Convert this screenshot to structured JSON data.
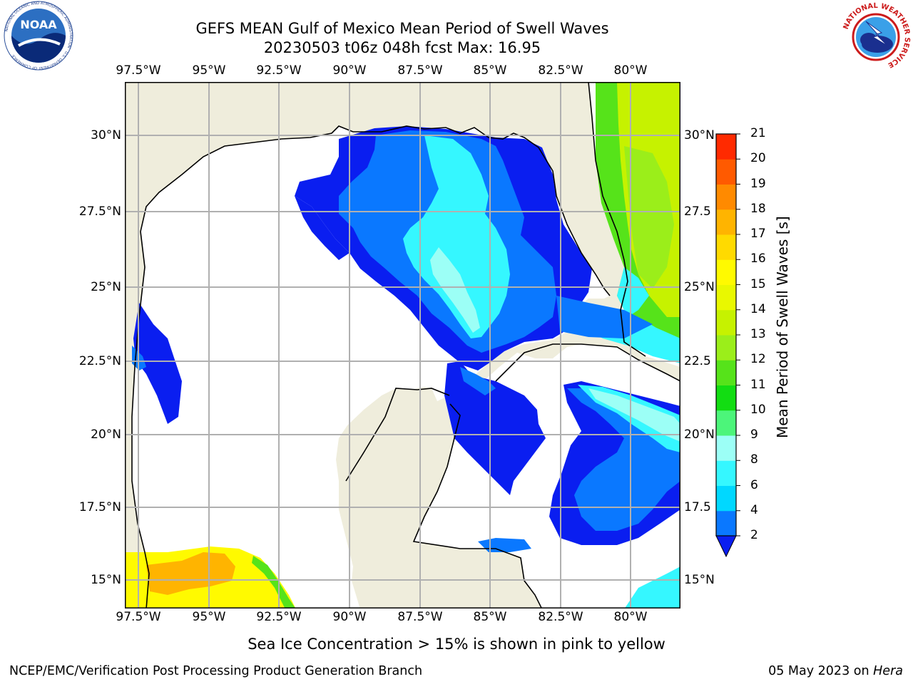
{
  "header": {
    "title_line1": "GEFS MEAN Gulf of Mexico Mean Period of Swell Waves",
    "title_line2": "20230503 t06z 048h fcst   Max: 16.95"
  },
  "logos": {
    "left": {
      "name": "noaa-logo",
      "text": "NOAA",
      "ring_text": "NATIONAL OCEANIC AND ATMOSPHERIC ADMINISTRATION · U.S. DEPARTMENT OF COMMERCE"
    },
    "right": {
      "name": "nws-logo",
      "ring_text": "NATIONAL WEATHER SERVICE"
    }
  },
  "map": {
    "lon_ticks": [
      "97.5°W",
      "95°W",
      "92.5°W",
      "90°W",
      "87.5°W",
      "85°W",
      "82.5°W",
      "80°W"
    ],
    "lat_ticks_left": [
      "30°N",
      "27.5°N",
      "25°N",
      "22.5°N",
      "20°N",
      "17.5°N",
      "15°N"
    ],
    "lat_ticks_right": [
      "30°N",
      "27.5",
      "25°N",
      "22.5",
      "20°N",
      "17.5",
      "15°N"
    ],
    "colors": {
      "land": "#efeddc",
      "ocean_nodata": "#ffffff",
      "grid": "#b0b0b0",
      "coast": "#000000"
    }
  },
  "colorbar": {
    "label": "Mean Period of Swell Waves [s]",
    "levels": [
      "2",
      "4",
      "6",
      "8",
      "9",
      "10",
      "11",
      "12",
      "13",
      "14",
      "15",
      "16",
      "17",
      "18",
      "19",
      "20",
      "21"
    ],
    "colors": [
      "#0a78ff",
      "#00d8ff",
      "#35f7ff",
      "#9cfff6",
      "#4cf57a",
      "#12dd12",
      "#56e31a",
      "#9bee1a",
      "#c6f200",
      "#e9f800",
      "#fffa00",
      "#ffda00",
      "#ffb400",
      "#ff8a00",
      "#ff5a00",
      "#ff2a00"
    ],
    "under_color": "#0a1ef0"
  },
  "footer": {
    "note": "Sea Ice Concentration > 15% is shown in pink to yellow",
    "left": "NCEP/EMC/Verification Post Processing Product Generation Branch",
    "right_prefix": "05 May 2023 on ",
    "right_machine": "Hera"
  }
}
